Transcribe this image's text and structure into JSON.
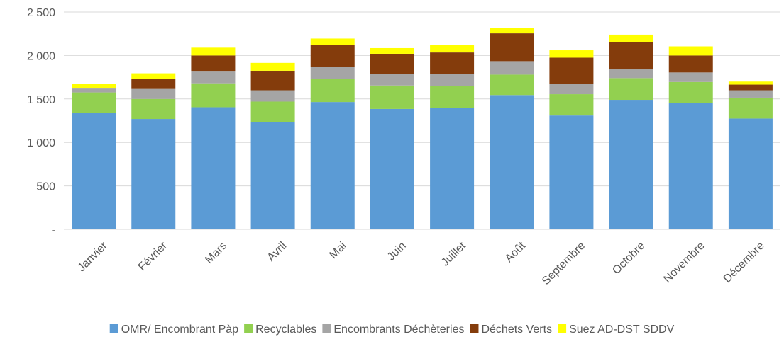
{
  "chart_data": {
    "type": "bar",
    "stacked": true,
    "categories": [
      "Janvier",
      "Février",
      "Mars",
      "Avril",
      "Mai",
      "Juin",
      "Juillet",
      "Août",
      "Septembre",
      "Octobre",
      "Novembre",
      "Décembre"
    ],
    "series": [
      {
        "name": "OMR/ Encombrant Pàp",
        "color": "#5b9bd5",
        "values": [
          1340,
          1270,
          1405,
          1235,
          1465,
          1385,
          1400,
          1545,
          1310,
          1490,
          1450,
          1275
        ]
      },
      {
        "name": "Recyclables",
        "color": "#92d050",
        "values": [
          235,
          230,
          275,
          235,
          265,
          270,
          250,
          235,
          245,
          250,
          245,
          240
        ]
      },
      {
        "name": "Encombrants Déchèteries",
        "color": "#a5a5a5",
        "values": [
          45,
          115,
          135,
          130,
          140,
          130,
          135,
          155,
          120,
          100,
          110,
          85
        ]
      },
      {
        "name": "Déchets Verts",
        "color": "#843c0c",
        "values": [
          0,
          115,
          185,
          225,
          250,
          235,
          250,
          320,
          300,
          315,
          195,
          65
        ]
      },
      {
        "name": "Suez AD-DST SDDV",
        "color": "#ffff00",
        "values": [
          55,
          65,
          90,
          90,
          75,
          65,
          85,
          60,
          85,
          85,
          105,
          35
        ]
      }
    ],
    "yticks": [
      "-",
      "500",
      "1 000",
      "1 500",
      "2 000",
      "2 500"
    ],
    "ylim": [
      0,
      2500
    ],
    "grid": true,
    "legend": "bottom",
    "title": "",
    "xlabel": "",
    "ylabel": ""
  }
}
